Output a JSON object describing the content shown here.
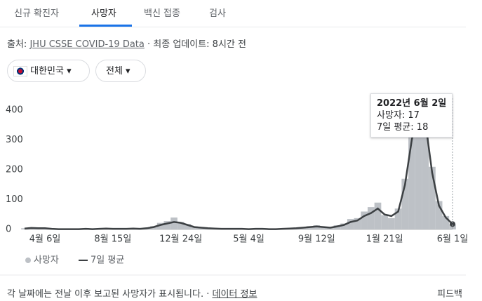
{
  "tabs": [
    "신규 확진자",
    "사망자",
    "백신 접종",
    "검사"
  ],
  "source": {
    "prefix": "출처:",
    "link": "JHU CSSE COVID-19 Data",
    "suffix": "· 최종 업데이트: 8시간 전"
  },
  "filters": [
    "대한민국",
    "전체"
  ],
  "footer": {
    "note": "각 날짜에는 전날 이후 보고된 사망자가 표시됩니다. ·",
    "link": "데이터 정보",
    "feedback": "피드백"
  },
  "chart_data": {
    "type": "bar",
    "categories": [
      null,
      null,
      null,
      "4월 6일",
      null,
      null,
      null,
      null,
      null,
      null,
      null,
      null,
      null,
      "8월 15일",
      null,
      null,
      null,
      null,
      null,
      null,
      null,
      null,
      null,
      "12월 24일",
      null,
      null,
      null,
      null,
      null,
      null,
      null,
      null,
      null,
      "5월 4일",
      null,
      null,
      null,
      null,
      null,
      null,
      null,
      null,
      null,
      "9월 12일",
      null,
      null,
      null,
      null,
      null,
      null,
      null,
      null,
      null,
      "1월 21일",
      null,
      null,
      null,
      null,
      null,
      null,
      null,
      null,
      null,
      "6월 1일"
    ],
    "series": [
      {
        "name": "사망자",
        "type": "bar",
        "color": "#bdc1c6",
        "values": [
          4,
          7,
          3,
          5,
          2,
          1,
          2,
          1,
          1,
          3,
          1,
          3,
          4,
          2,
          3,
          2,
          4,
          2,
          6,
          11,
          22,
          28,
          40,
          25,
          18,
          10,
          7,
          5,
          4,
          2,
          3,
          2,
          3,
          1,
          3,
          2,
          1,
          2,
          3,
          4,
          5,
          8,
          11,
          14,
          9,
          7,
          14,
          20,
          35,
          38,
          60,
          75,
          90,
          48,
          38,
          70,
          170,
          330,
          430,
          380,
          210,
          95,
          45,
          17
        ]
      },
      {
        "name": "7일 평균",
        "type": "line",
        "color": "#3c4043",
        "values": [
          3,
          5,
          4,
          4,
          2,
          1,
          1,
          1,
          1,
          2,
          1,
          2,
          3,
          2,
          2,
          2,
          3,
          2,
          4,
          8,
          15,
          20,
          25,
          22,
          15,
          8,
          6,
          4,
          3,
          2,
          2,
          2,
          2,
          1,
          2,
          2,
          1,
          1,
          2,
          3,
          4,
          6,
          8,
          10,
          8,
          6,
          10,
          15,
          25,
          30,
          45,
          55,
          70,
          50,
          45,
          60,
          150,
          300,
          410,
          360,
          190,
          80,
          40,
          18
        ]
      }
    ],
    "ylim": [
      0,
      440
    ],
    "yticks": [
      0,
      100,
      200,
      300,
      400
    ],
    "tooltip": {
      "date": "2022년 6월 2일",
      "deaths": "사망자: 17",
      "average": "7일 평균: 18"
    }
  }
}
